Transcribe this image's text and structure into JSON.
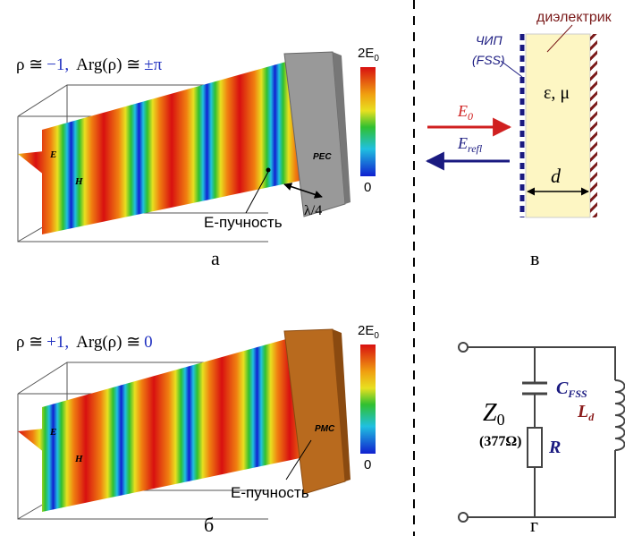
{
  "panel_a": {
    "title": [
      "ρ ≅",
      "−1,",
      "Arg(ρ) ≅",
      "±π"
    ],
    "colorbar_max": [
      "2E",
      "0"
    ],
    "colorbar_min": "0",
    "e_label": "E",
    "h_label": "H",
    "boundary": "PEC",
    "distance": "λ/4",
    "antinode": "E-пучность",
    "caption": "а"
  },
  "panel_b": {
    "title": [
      "ρ ≅",
      "+1,",
      "Arg(ρ) ≅",
      "0"
    ],
    "colorbar_max": [
      "2E",
      "0"
    ],
    "colorbar_min": "0",
    "e_label": "E",
    "h_label": "H",
    "boundary": "PMC",
    "antinode": "E-пучность",
    "caption": "б"
  },
  "panel_c": {
    "dielectric": "диэлектрик",
    "fss": [
      "ЧИП",
      "(FSS)"
    ],
    "material": "ε, μ",
    "incident": [
      "E",
      "0"
    ],
    "reflected": [
      "E",
      "refl"
    ],
    "thickness": "d",
    "caption": "в"
  },
  "panel_d": {
    "impedance": [
      "Z",
      "0"
    ],
    "impedance_value": "(377Ω)",
    "capacitance": [
      "C",
      "FSS"
    ],
    "resistance": "R",
    "inductance": [
      "L",
      "d"
    ],
    "caption": "г"
  }
}
